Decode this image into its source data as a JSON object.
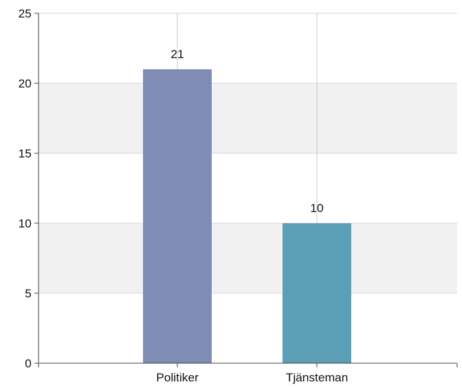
{
  "chart_data": {
    "type": "bar",
    "categories": [
      "Politiker",
      "Tjänsteman"
    ],
    "values": [
      21,
      10
    ],
    "data_labels": [
      "21",
      "10"
    ],
    "title": "",
    "xlabel": "",
    "ylabel": "",
    "ylim": [
      0,
      25
    ],
    "yticks": [
      0,
      5,
      10,
      15,
      20,
      25
    ],
    "ytick_labels": [
      "0",
      "5",
      "10",
      "15",
      "20",
      "25"
    ],
    "grid": true,
    "legend": "none",
    "colors": {
      "bars": [
        "#7f8db6",
        "#5a9fb6"
      ],
      "band": "#f1f1f1",
      "gridline": "#d6d6d6",
      "axis": "#444444"
    }
  }
}
